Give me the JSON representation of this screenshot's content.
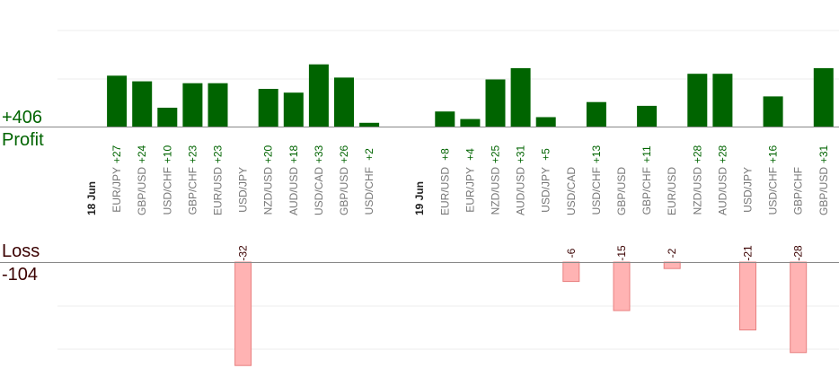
{
  "summary": {
    "profit_total": "+406",
    "profit_label": "Profit",
    "loss_label": "Loss",
    "loss_total": "-104"
  },
  "colors": {
    "profit_bar": "#006400",
    "profit_text": "#006400",
    "loss_bar_fill": "#ffb3b3",
    "loss_bar_stroke": "#e88080",
    "loss_text": "#3a0000",
    "grid": "#eeeeee",
    "axis": "#888888",
    "tick_text": "#777777",
    "date_text": "#222222"
  },
  "chart_data": {
    "type": "bar",
    "xlabel": "",
    "ylabel": "",
    "grid": true,
    "profit_ylim": [
      0,
      50
    ],
    "loss_ylim": [
      -42,
      0
    ],
    "dates": [
      "18 Jun",
      "19 Jun"
    ],
    "categories": [
      "EUR/JPY",
      "GBP/USD",
      "USD/CHF",
      "GBP/CHF",
      "EUR/USD",
      "USD/JPY",
      "NZD/USD",
      "AUD/USD",
      "USD/CAD",
      "GBP/USD",
      "USD/CHF",
      "EUR/USD",
      "EUR/JPY",
      "NZD/USD",
      "AUD/USD",
      "USD/JPY",
      "USD/CAD",
      "USD/CHF",
      "GBP/USD",
      "GBP/CHF",
      "EUR/USD",
      "NZD/USD",
      "AUD/USD",
      "USD/JPY",
      "USD/CHF",
      "GBP/CHF",
      "GBP/USD"
    ],
    "category_date": [
      0,
      0,
      0,
      0,
      0,
      0,
      0,
      0,
      0,
      0,
      0,
      1,
      1,
      1,
      1,
      1,
      1,
      1,
      1,
      1,
      1,
      1,
      1,
      1,
      1,
      1,
      1
    ],
    "series": [
      {
        "name": "Profit",
        "values": [
          27,
          24,
          10,
          23,
          23,
          null,
          20,
          18,
          33,
          26,
          2,
          8,
          4,
          25,
          31,
          5,
          null,
          13,
          null,
          11,
          null,
          28,
          28,
          null,
          16,
          null,
          31
        ],
        "labels": [
          "+27",
          "+24",
          "+10",
          "+23",
          "+23",
          "",
          "+20",
          "+18",
          "+33",
          "+26",
          "+2",
          "+8",
          "+4",
          "+25",
          "+31",
          "+5",
          "",
          "+13",
          "",
          "+11",
          "",
          "+28",
          "+28",
          "",
          "+16",
          "",
          "+31"
        ]
      },
      {
        "name": "Loss",
        "values": [
          null,
          null,
          null,
          null,
          null,
          -32,
          null,
          null,
          null,
          null,
          null,
          null,
          null,
          null,
          null,
          null,
          -6,
          null,
          -15,
          null,
          -2,
          null,
          null,
          -21,
          null,
          -28,
          null
        ],
        "labels": [
          "",
          "",
          "",
          "",
          "",
          "-32",
          "",
          "",
          "",
          "",
          "",
          "",
          "",
          "",
          "",
          "",
          "-6",
          "",
          "-15",
          "",
          "-2",
          "",
          "",
          "-21",
          "",
          "-28",
          ""
        ]
      }
    ]
  }
}
